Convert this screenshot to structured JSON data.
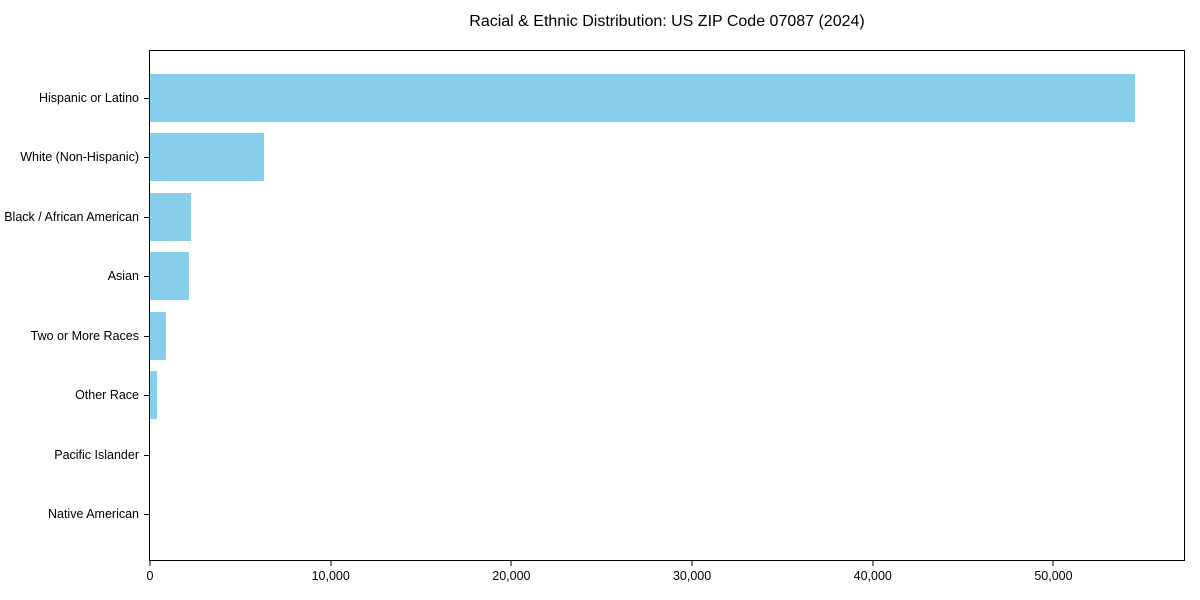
{
  "title": "Racial & Ethnic Distribution: US ZIP Code 07087 (2024)",
  "colors": {
    "bar": "#87CEEB",
    "axis": "#000000",
    "background": "#FFFFFF",
    "text": "#000000"
  },
  "chart_data": {
    "type": "bar",
    "orientation": "horizontal",
    "title": "Racial & Ethnic Distribution: US ZIP Code 07087 (2024)",
    "categories": [
      "Hispanic or Latino",
      "White (Non-Hispanic)",
      "Black / African American",
      "Asian",
      "Two or More Races",
      "Other Race",
      "Pacific Islander",
      "Native American"
    ],
    "values": [
      54500,
      6300,
      2250,
      2150,
      900,
      400,
      0,
      0
    ],
    "xlabel": "",
    "ylabel": "",
    "xlim": [
      0,
      57225
    ],
    "x_ticks": [
      {
        "value": 0,
        "label": "0"
      },
      {
        "value": 10000,
        "label": "10,000"
      },
      {
        "value": 20000,
        "label": "20,000"
      },
      {
        "value": 30000,
        "label": "30,000"
      },
      {
        "value": 40000,
        "label": "40,000"
      },
      {
        "value": 50000,
        "label": "50,000"
      }
    ],
    "grid": false,
    "legend": null,
    "bar_color_name": "skyblue",
    "bars_sorted_descending": true
  }
}
